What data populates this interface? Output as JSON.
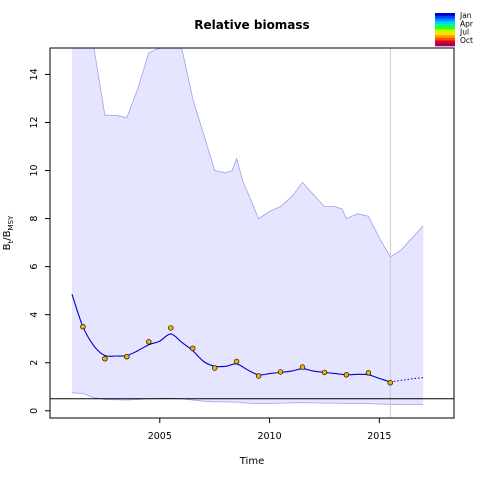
{
  "chart_data": {
    "type": "line",
    "title": "Relative biomass",
    "xlabel": "Time",
    "ylabel": {
      "base": "B",
      "sub1": "t",
      "mid": "/B",
      "sub2": "MSY"
    },
    "xlim": [
      2000.0,
      2018.4
    ],
    "ylim": [
      -0.3,
      15.1
    ],
    "x_ticks": [
      2005,
      2010,
      2015
    ],
    "y_ticks": [
      0,
      2,
      4,
      6,
      8,
      10,
      12,
      14
    ],
    "reference_line_y": 0.5,
    "vertical_line_x": 2015.5,
    "confidence_band": {
      "x": [
        2001,
        2001.5,
        2002,
        2002.5,
        2003,
        2003.5,
        2004,
        2004.5,
        2005,
        2005.5,
        2006,
        2006.5,
        2007,
        2007.5,
        2008,
        2008.3,
        2008.5,
        2008.8,
        2009,
        2009.5,
        2010,
        2010.5,
        2011,
        2011.5,
        2012,
        2012.5,
        2013,
        2013.3,
        2013.5,
        2014,
        2014.5,
        2015,
        2015.5,
        2016,
        2016.5,
        2017
      ],
      "upper": [
        15.1,
        15.1,
        15.1,
        12.3,
        12.3,
        12.2,
        13.4,
        14.9,
        15.1,
        15.1,
        15.1,
        13.0,
        11.5,
        10.0,
        9.9,
        10.0,
        10.5,
        9.5,
        9.1,
        8.0,
        8.3,
        8.5,
        8.9,
        9.5,
        9.0,
        8.5,
        8.5,
        8.4,
        8.0,
        8.2,
        8.1,
        7.2,
        6.4,
        6.7,
        7.2,
        7.7
      ],
      "lower": [
        0.75,
        0.72,
        0.55,
        0.47,
        0.46,
        0.45,
        0.47,
        0.5,
        0.52,
        0.52,
        0.5,
        0.45,
        0.4,
        0.37,
        0.37,
        0.36,
        0.36,
        0.34,
        0.32,
        0.3,
        0.31,
        0.32,
        0.33,
        0.34,
        0.33,
        0.32,
        0.32,
        0.31,
        0.31,
        0.3,
        0.3,
        0.28,
        0.27,
        0.26,
        0.26,
        0.26
      ]
    },
    "fit": {
      "x": [
        2001,
        2001.5,
        2002,
        2002.5,
        2003,
        2003.5,
        2004,
        2004.5,
        2005,
        2005.5,
        2006,
        2006.5,
        2007,
        2007.5,
        2008,
        2008.5,
        2009,
        2009.5,
        2010,
        2010.5,
        2011,
        2011.5,
        2012,
        2012.5,
        2013,
        2013.5,
        2014,
        2014.5,
        2015,
        2015.5
      ],
      "y": [
        4.85,
        3.5,
        2.7,
        2.3,
        2.28,
        2.3,
        2.5,
        2.75,
        2.9,
        3.2,
        2.85,
        2.5,
        2.05,
        1.85,
        1.85,
        1.95,
        1.7,
        1.5,
        1.55,
        1.6,
        1.65,
        1.75,
        1.65,
        1.6,
        1.55,
        1.5,
        1.52,
        1.5,
        1.35,
        1.2
      ]
    },
    "forecast": {
      "x": [
        2015.5,
        2016,
        2016.5,
        2017
      ],
      "y": [
        1.2,
        1.27,
        1.33,
        1.38
      ]
    },
    "observations": {
      "x": [
        2001.5,
        2002.5,
        2003.5,
        2004.5,
        2005.5,
        2006.5,
        2007.5,
        2008.5,
        2009.5,
        2010.5,
        2011.5,
        2012.5,
        2013.5,
        2014.5,
        2015.5
      ],
      "y": [
        3.5,
        2.17,
        2.25,
        2.87,
        3.45,
        2.6,
        1.78,
        2.05,
        1.45,
        1.62,
        1.82,
        1.6,
        1.5,
        1.58,
        1.17
      ]
    },
    "legend": {
      "placement": "top-right",
      "labels": [
        "Jan",
        "Apr",
        "Jul",
        "Oct"
      ],
      "colors": [
        "#0000cc",
        "#0040ff",
        "#0090ff",
        "#00d0ff",
        "#00ff90",
        "#40ff00",
        "#c0ff00",
        "#ffe000",
        "#ffa000",
        "#ff5000",
        "#e00020",
        "#a00060"
      ]
    },
    "colors": {
      "band_fill": "#e5e5ff",
      "band_edge": "#a0a0f0",
      "fit_line": "#0000cc",
      "point_fill": "#f0b400"
    }
  }
}
